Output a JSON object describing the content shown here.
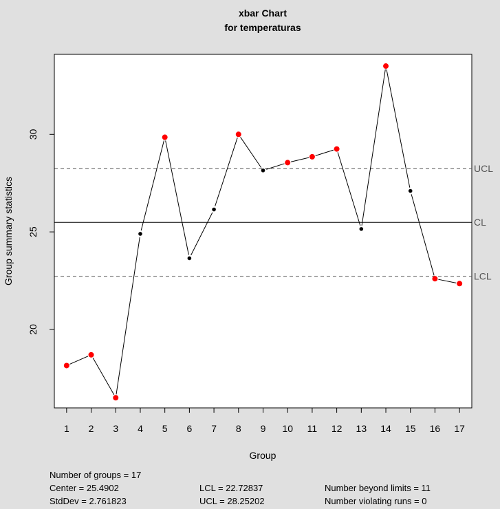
{
  "chart_data": {
    "type": "line",
    "title": "xbar Chart",
    "subtitle": "for temperaturas",
    "xlabel": "Group",
    "ylabel": "Group summary statistics",
    "x": [
      1,
      2,
      3,
      4,
      5,
      6,
      7,
      8,
      9,
      10,
      11,
      12,
      13,
      14,
      15,
      16,
      17
    ],
    "values": [
      18.15,
      18.7,
      16.5,
      24.9,
      29.85,
      23.65,
      26.15,
      30.0,
      28.15,
      28.55,
      28.85,
      29.25,
      25.15,
      33.5,
      27.1,
      22.6,
      22.35
    ],
    "violations": [
      true,
      true,
      true,
      false,
      true,
      false,
      false,
      true,
      false,
      true,
      true,
      true,
      false,
      true,
      false,
      true,
      true
    ],
    "xlim": [
      0.5,
      17.5
    ],
    "ylim": [
      15.98,
      34.1
    ],
    "yticks": [
      20,
      25,
      30
    ],
    "limits": {
      "center": 25.4902,
      "lcl": 22.72837,
      "ucl": 28.25202,
      "labels": {
        "ucl": "UCL",
        "center": "CL",
        "lcl": "LCL"
      }
    },
    "colors": {
      "normal": "#000000",
      "violation": "#ff0000"
    }
  },
  "stats": {
    "groups": "Number of groups = 17",
    "center": "Center = 25.4902",
    "stddev": "StdDev = 2.761823",
    "lcl": "LCL = 22.72837",
    "ucl": "UCL = 28.25202",
    "beyond": "Number beyond limits = 11",
    "runs": "Number violating runs = 0"
  }
}
